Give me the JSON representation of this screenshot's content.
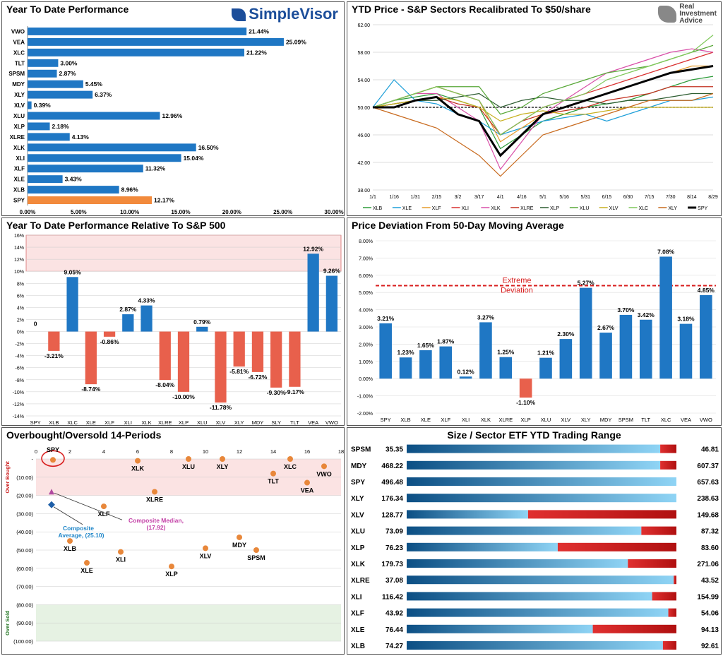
{
  "panels": {
    "ytd_title": "Year To Date Performance",
    "logo_left": "SimpleVisor",
    "price_title": "YTD Price - S&P Sectors Recalibrated To $50/share",
    "logo_right_line1": "Real",
    "logo_right_line2": "Investment",
    "logo_right_line3": "Advice",
    "rel_title": "Year To Date Performance Relative To S&P 500",
    "dev_title": "Price Deviation From 50-Day Moving Average",
    "ob_title": "Overbought/Oversold 14-Periods",
    "range_title": "Size / Sector ETF YTD Trading Range"
  },
  "colors": {
    "blue": "#1f77c4",
    "orange": "#f28a3c",
    "red": "#e8604c",
    "darkred": "#d81e1e",
    "pink_zone": "#fbe3e3",
    "green_zone": "#e6f2e3"
  },
  "chart_data": [
    {
      "type": "bar",
      "orientation": "horizontal",
      "title": "Year To Date Performance",
      "categories": [
        "VWO",
        "VEA",
        "XLC",
        "TLT",
        "SPSM",
        "MDY",
        "XLY",
        "XLV",
        "XLU",
        "XLP",
        "XLRE",
        "XLK",
        "XLI",
        "XLF",
        "XLE",
        "XLB",
        "SPY"
      ],
      "values": [
        21.44,
        25.09,
        21.22,
        3.0,
        2.87,
        5.45,
        6.37,
        0.39,
        12.96,
        2.18,
        4.13,
        16.5,
        15.04,
        11.32,
        3.43,
        8.96,
        12.17
      ],
      "labels": [
        "21.44%",
        "25.09%",
        "21.22%",
        "3.00%",
        "2.87%",
        "5.45%",
        "6.37%",
        "0.39%",
        "12.96%",
        "2.18%",
        "4.13%",
        "16.50%",
        "15.04%",
        "11.32%",
        "3.43%",
        "8.96%",
        "12.17%"
      ],
      "highlight": "SPY",
      "xlim": [
        0,
        30
      ],
      "xticks": [
        "0.00%",
        "5.00%",
        "10.00%",
        "15.00%",
        "20.00%",
        "25.00%",
        "30.00%"
      ]
    },
    {
      "type": "line",
      "title": "YTD Price - S&P Sectors Recalibrated To $50/share",
      "x": [
        "1/1",
        "1/16",
        "1/31",
        "2/15",
        "3/2",
        "3/17",
        "4/1",
        "4/16",
        "5/1",
        "5/16",
        "5/31",
        "6/15",
        "6/30",
        "7/15",
        "7/30",
        "8/14",
        "8/29"
      ],
      "ylim": [
        38,
        62
      ],
      "yticks": [
        "62.00",
        "58.00",
        "54.00",
        "50.00",
        "46.00",
        "42.00",
        "38.00"
      ],
      "series": [
        {
          "name": "XLB",
          "color": "#2e9c3a",
          "values": [
            50,
            51,
            51.5,
            52,
            51,
            50,
            44,
            46,
            48,
            49,
            50,
            50.5,
            51,
            52,
            53,
            54,
            54.5
          ]
        },
        {
          "name": "XLE",
          "color": "#1e9fd8",
          "values": [
            50,
            54,
            51,
            50.5,
            49,
            48,
            46,
            47,
            48,
            48.5,
            49,
            48,
            49,
            50,
            51,
            51,
            51.5
          ]
        },
        {
          "name": "XLF",
          "color": "#e59c2c",
          "values": [
            50,
            51,
            52,
            53,
            52,
            51,
            45,
            47,
            49,
            50,
            51,
            52,
            53,
            54,
            55,
            56,
            56
          ]
        },
        {
          "name": "XLI",
          "color": "#d93030",
          "values": [
            50,
            51,
            52,
            53,
            52,
            51,
            46,
            48,
            50,
            51,
            52,
            53,
            54,
            55,
            56,
            57,
            58
          ]
        },
        {
          "name": "XLK",
          "color": "#d94fa8",
          "values": [
            50,
            51,
            52,
            52,
            50,
            48,
            41,
            45,
            49,
            51,
            53,
            55,
            56,
            57,
            58,
            58.5,
            58
          ]
        },
        {
          "name": "XLRE",
          "color": "#c33020",
          "values": [
            50,
            50.5,
            51,
            51.5,
            50.5,
            50,
            46,
            48,
            49,
            49.5,
            50,
            51,
            51.5,
            52,
            53,
            53,
            53
          ]
        },
        {
          "name": "XLP",
          "color": "#2c5c30",
          "values": [
            50,
            50.5,
            51,
            51,
            51.5,
            52,
            50,
            51,
            51.5,
            51,
            51,
            50.5,
            51,
            51,
            51.5,
            52,
            52
          ]
        },
        {
          "name": "XLU",
          "color": "#58a838",
          "values": [
            50,
            51,
            52,
            53,
            53,
            53,
            49,
            50,
            52,
            53,
            54,
            55,
            55.5,
            56,
            57,
            58,
            59
          ]
        },
        {
          "name": "XLV",
          "color": "#c8b020",
          "values": [
            50,
            50.5,
            51,
            51.5,
            51,
            50,
            48,
            49,
            49.5,
            49,
            49,
            49.5,
            50,
            50,
            50,
            50,
            50
          ]
        },
        {
          "name": "XLC",
          "color": "#7ec85a",
          "values": [
            50,
            51,
            52,
            53,
            52,
            51,
            46,
            48,
            50,
            51,
            52,
            54,
            55,
            56,
            57,
            58,
            60.5
          ]
        },
        {
          "name": "XLY",
          "color": "#c86a1e",
          "values": [
            50,
            49,
            48,
            47,
            45,
            43,
            40,
            43,
            46,
            47,
            48,
            49,
            50,
            51,
            51,
            51,
            52
          ]
        },
        {
          "name": "SPY",
          "color": "#000000",
          "values": [
            50,
            50,
            51,
            51.5,
            49,
            48,
            43,
            46,
            49,
            50,
            51,
            52,
            53,
            54,
            55,
            55.5,
            56
          ]
        }
      ]
    },
    {
      "type": "bar",
      "title": "Year To Date Performance Relative To S&P 500",
      "categories": [
        "SPY",
        "XLB",
        "XLC",
        "XLE",
        "XLF",
        "XLI",
        "XLK",
        "XLRE",
        "XLP",
        "XLU",
        "XLV",
        "XLY",
        "MDY",
        "SLY",
        "TLT",
        "VEA",
        "VWO"
      ],
      "values": [
        0,
        -3.21,
        9.05,
        -8.74,
        -0.86,
        2.87,
        4.33,
        -8.04,
        -10.0,
        0.79,
        -11.78,
        -5.81,
        -6.72,
        -9.3,
        -9.17,
        12.92,
        9.26
      ],
      "labels": [
        "0",
        "-3.21%",
        "9.05%",
        "-8.74%",
        "-0.86%",
        "2.87%",
        "4.33%",
        "-8.04%",
        "-10.00%",
        "0.79%",
        "-11.78%",
        "-5.81%",
        "-6.72%",
        "-9.30%",
        "-9.17%",
        "12.92%",
        "9.26%"
      ],
      "ylim": [
        -14,
        16
      ],
      "yticks": [
        "16%",
        "14%",
        "12%",
        "10%",
        "8%",
        "6%",
        "4%",
        "2%",
        "0%",
        "-2%",
        "-4%",
        "-6%",
        "-8%",
        "-10%",
        "-12%",
        "-14%"
      ],
      "shaded_zone": [
        10,
        16
      ]
    },
    {
      "type": "bar",
      "title": "Price Deviation From 50-Day Moving Average",
      "categories": [
        "SPY",
        "XLB",
        "XLE",
        "XLF",
        "XLI",
        "XLK",
        "XLRE",
        "XLP",
        "XLU",
        "XLV",
        "XLY",
        "MDY",
        "SPSM",
        "TLT",
        "XLC",
        "VEA",
        "VWO"
      ],
      "values": [
        3.21,
        1.23,
        1.65,
        1.87,
        0.12,
        3.27,
        1.25,
        -1.1,
        1.21,
        2.3,
        5.27,
        2.67,
        3.7,
        3.42,
        7.08,
        3.18,
        4.85
      ],
      "labels": [
        "3.21%",
        "1.23%",
        "1.65%",
        "1.87%",
        "0.12%",
        "3.27%",
        "1.25%",
        "-1.10%",
        "1.21%",
        "2.30%",
        "5.27%",
        "2.67%",
        "3.70%",
        "3.42%",
        "7.08%",
        "3.18%",
        "4.85%"
      ],
      "ylim": [
        -2,
        8
      ],
      "yticks": [
        "8.00%",
        "7.00%",
        "6.00%",
        "5.00%",
        "4.00%",
        "3.00%",
        "2.00%",
        "1.00%",
        "0.00%",
        "-1.00%",
        "-2.00%"
      ],
      "threshold": 5.4,
      "threshold_label_1": "Extreme",
      "threshold_label_2": "Deviation"
    },
    {
      "type": "scatter",
      "title": "Overbought/Oversold 14-Periods",
      "xlim": [
        0,
        18
      ],
      "ylim": [
        0,
        100
      ],
      "xticks": [
        "0",
        "2",
        "4",
        "6",
        "8",
        "10",
        "12",
        "14",
        "16",
        "18"
      ],
      "yticks": [
        "-",
        "(10.00)",
        "(20.00)",
        "(30.00)",
        "(40.00)",
        "(50.00)",
        "(60.00)",
        "(70.00)",
        "(80.00)",
        "(90.00)",
        "(100.00)"
      ],
      "zone_top_label": "Over Bought",
      "zone_bottom_label": "Over Sold",
      "points": [
        {
          "name": "SPY",
          "x": 1,
          "y": 0.5
        },
        {
          "name": "XLK",
          "x": 6,
          "y": 1
        },
        {
          "name": "XLU",
          "x": 9,
          "y": 0
        },
        {
          "name": "XLY",
          "x": 11,
          "y": 0
        },
        {
          "name": "XLC",
          "x": 15,
          "y": 0
        },
        {
          "name": "VWO",
          "x": 17,
          "y": 4
        },
        {
          "name": "TLT",
          "x": 14,
          "y": 8
        },
        {
          "name": "VEA",
          "x": 16,
          "y": 13
        },
        {
          "name": "XLRE",
          "x": 7,
          "y": 18
        },
        {
          "name": "XLF",
          "x": 4,
          "y": 26
        },
        {
          "name": "MDY",
          "x": 12,
          "y": 43
        },
        {
          "name": "XLB",
          "x": 2,
          "y": 45
        },
        {
          "name": "XLV",
          "x": 10,
          "y": 49
        },
        {
          "name": "SPSM",
          "x": 13,
          "y": 50
        },
        {
          "name": "XLI",
          "x": 5,
          "y": 51
        },
        {
          "name": "XLE",
          "x": 3,
          "y": 57
        },
        {
          "name": "XLP",
          "x": 8,
          "y": 59
        }
      ],
      "composite_average": {
        "label_1": "Composite",
        "label_2": "Average,  (25.10)",
        "x": 1,
        "y": 25.1
      },
      "composite_median": {
        "label_1": "Composite Median,",
        "label_2": "(17.92)",
        "x": 1,
        "y": 17.92
      }
    },
    {
      "type": "range",
      "title": "Size / Sector ETF YTD Trading Range",
      "rows": [
        {
          "name": "SPSM",
          "low": "35.35",
          "high": "46.81",
          "position": 0.94
        },
        {
          "name": "MDY",
          "low": "468.22",
          "high": "607.37",
          "position": 0.94
        },
        {
          "name": "SPY",
          "low": "496.48",
          "high": "657.63",
          "position": 1.0
        },
        {
          "name": "XLY",
          "low": "176.34",
          "high": "238.63",
          "position": 1.0
        },
        {
          "name": "XLV",
          "low": "128.77",
          "high": "149.68",
          "position": 0.45
        },
        {
          "name": "XLU",
          "low": "73.09",
          "high": "87.32",
          "position": 0.87
        },
        {
          "name": "XLP",
          "low": "76.23",
          "high": "83.60",
          "position": 0.56
        },
        {
          "name": "XLK",
          "low": "179.73",
          "high": "271.06",
          "position": 0.82
        },
        {
          "name": "XLRE",
          "low": "37.08",
          "high": "43.52",
          "position": 0.99
        },
        {
          "name": "XLI",
          "low": "116.42",
          "high": "154.99",
          "position": 0.91
        },
        {
          "name": "XLF",
          "low": "43.92",
          "high": "54.06",
          "position": 0.97
        },
        {
          "name": "XLE",
          "low": "76.44",
          "high": "94.13",
          "position": 0.69
        },
        {
          "name": "XLB",
          "low": "74.27",
          "high": "92.61",
          "position": 0.95
        }
      ]
    }
  ]
}
